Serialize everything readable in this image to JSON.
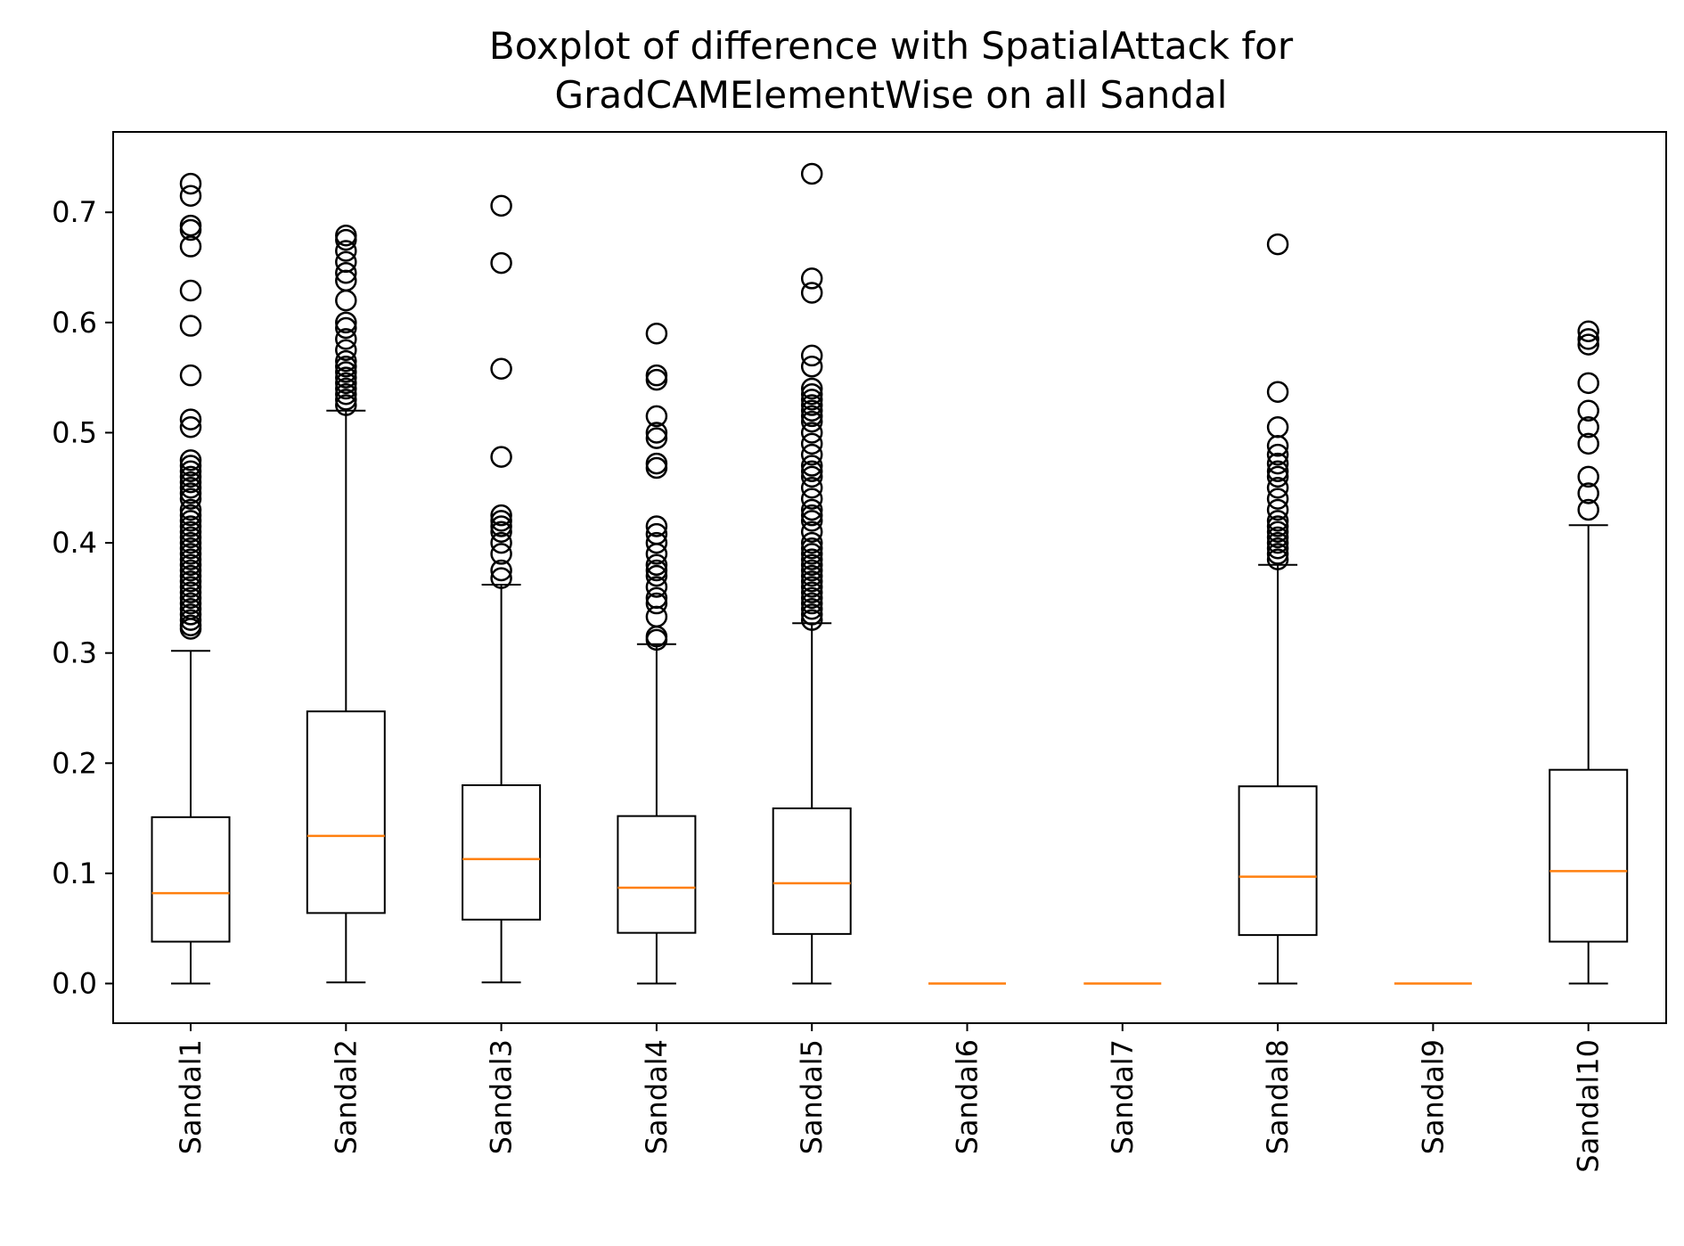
{
  "chart_data": {
    "type": "boxplot",
    "title": "Boxplot of difference with SpatialAttack for GradCAMElementWise on all Sandal",
    "title_lines": [
      "Boxplot of difference with SpatialAttack for",
      "GradCAMElementWise on all Sandal"
    ],
    "xlabel": "",
    "ylabel": "",
    "ylim": [
      -0.036,
      0.773
    ],
    "yticks": [
      0.0,
      0.1,
      0.2,
      0.3,
      0.4,
      0.5,
      0.6,
      0.7
    ],
    "ytick_labels": [
      "0.0",
      "0.1",
      "0.2",
      "0.3",
      "0.4",
      "0.5",
      "0.6",
      "0.7"
    ],
    "grid": false,
    "colors": {
      "box": "#000000",
      "median": "#ff7f0e",
      "flier": "#000000"
    },
    "categories": [
      "Sandal1",
      "Sandal2",
      "Sandal3",
      "Sandal4",
      "Sandal5",
      "Sandal6",
      "Sandal7",
      "Sandal8",
      "Sandal9",
      "Sandal10"
    ],
    "boxes": [
      {
        "label": "Sandal1",
        "whislo": 0.0,
        "q1": 0.038,
        "med": 0.082,
        "q3": 0.151,
        "whishi": 0.302,
        "fliers": [
          0.726,
          0.715,
          0.688,
          0.684,
          0.669,
          0.629,
          0.597,
          0.552,
          0.512,
          0.505,
          0.475,
          0.47,
          0.465,
          0.46,
          0.455,
          0.45,
          0.445,
          0.44,
          0.43,
          0.425,
          0.42,
          0.415,
          0.41,
          0.405,
          0.4,
          0.395,
          0.39,
          0.385,
          0.38,
          0.375,
          0.37,
          0.365,
          0.36,
          0.355,
          0.35,
          0.345,
          0.34,
          0.335,
          0.33,
          0.325,
          0.322
        ]
      },
      {
        "label": "Sandal2",
        "whislo": 0.001,
        "q1": 0.064,
        "med": 0.134,
        "q3": 0.247,
        "whishi": 0.52,
        "fliers": [
          0.679,
          0.675,
          0.665,
          0.655,
          0.645,
          0.638,
          0.62,
          0.6,
          0.595,
          0.585,
          0.575,
          0.565,
          0.56,
          0.555,
          0.55,
          0.545,
          0.54,
          0.535,
          0.53,
          0.525
        ]
      },
      {
        "label": "Sandal3",
        "whislo": 0.001,
        "q1": 0.058,
        "med": 0.113,
        "q3": 0.18,
        "whishi": 0.362,
        "fliers": [
          0.706,
          0.654,
          0.558,
          0.478,
          0.425,
          0.42,
          0.415,
          0.41,
          0.4,
          0.39,
          0.375,
          0.368
        ]
      },
      {
        "label": "Sandal4",
        "whislo": 0.0,
        "q1": 0.046,
        "med": 0.087,
        "q3": 0.152,
        "whishi": 0.308,
        "fliers": [
          0.59,
          0.552,
          0.548,
          0.515,
          0.5,
          0.495,
          0.472,
          0.468,
          0.415,
          0.408,
          0.4,
          0.39,
          0.38,
          0.375,
          0.37,
          0.36,
          0.35,
          0.345,
          0.333,
          0.315,
          0.312
        ]
      },
      {
        "label": "Sandal5",
        "whislo": 0.0,
        "q1": 0.045,
        "med": 0.091,
        "q3": 0.159,
        "whishi": 0.327,
        "fliers": [
          0.735,
          0.64,
          0.627,
          0.57,
          0.56,
          0.54,
          0.535,
          0.53,
          0.525,
          0.52,
          0.515,
          0.51,
          0.5,
          0.49,
          0.48,
          0.47,
          0.465,
          0.46,
          0.45,
          0.44,
          0.43,
          0.425,
          0.42,
          0.41,
          0.4,
          0.395,
          0.39,
          0.385,
          0.38,
          0.375,
          0.37,
          0.365,
          0.36,
          0.355,
          0.35,
          0.345,
          0.34,
          0.335,
          0.33
        ]
      },
      {
        "label": "Sandal6",
        "whislo": 0.0,
        "q1": 0.0,
        "med": 0.0,
        "q3": 0.0,
        "whishi": 0.0,
        "fliers": []
      },
      {
        "label": "Sandal7",
        "whislo": 0.0,
        "q1": 0.0,
        "med": 0.0,
        "q3": 0.0,
        "whishi": 0.0,
        "fliers": []
      },
      {
        "label": "Sandal8",
        "whislo": 0.0,
        "q1": 0.044,
        "med": 0.097,
        "q3": 0.179,
        "whishi": 0.38,
        "fliers": [
          0.671,
          0.537,
          0.505,
          0.488,
          0.48,
          0.472,
          0.465,
          0.46,
          0.45,
          0.44,
          0.43,
          0.42,
          0.415,
          0.41,
          0.405,
          0.4,
          0.395,
          0.39,
          0.385
        ]
      },
      {
        "label": "Sandal9",
        "whislo": 0.0,
        "q1": 0.0,
        "med": 0.0,
        "q3": 0.0,
        "whishi": 0.0,
        "fliers": []
      },
      {
        "label": "Sandal10",
        "whislo": 0.0,
        "q1": 0.038,
        "med": 0.102,
        "q3": 0.194,
        "whishi": 0.416,
        "fliers": [
          0.592,
          0.585,
          0.58,
          0.545,
          0.52,
          0.505,
          0.49,
          0.46,
          0.445,
          0.43
        ]
      }
    ]
  }
}
